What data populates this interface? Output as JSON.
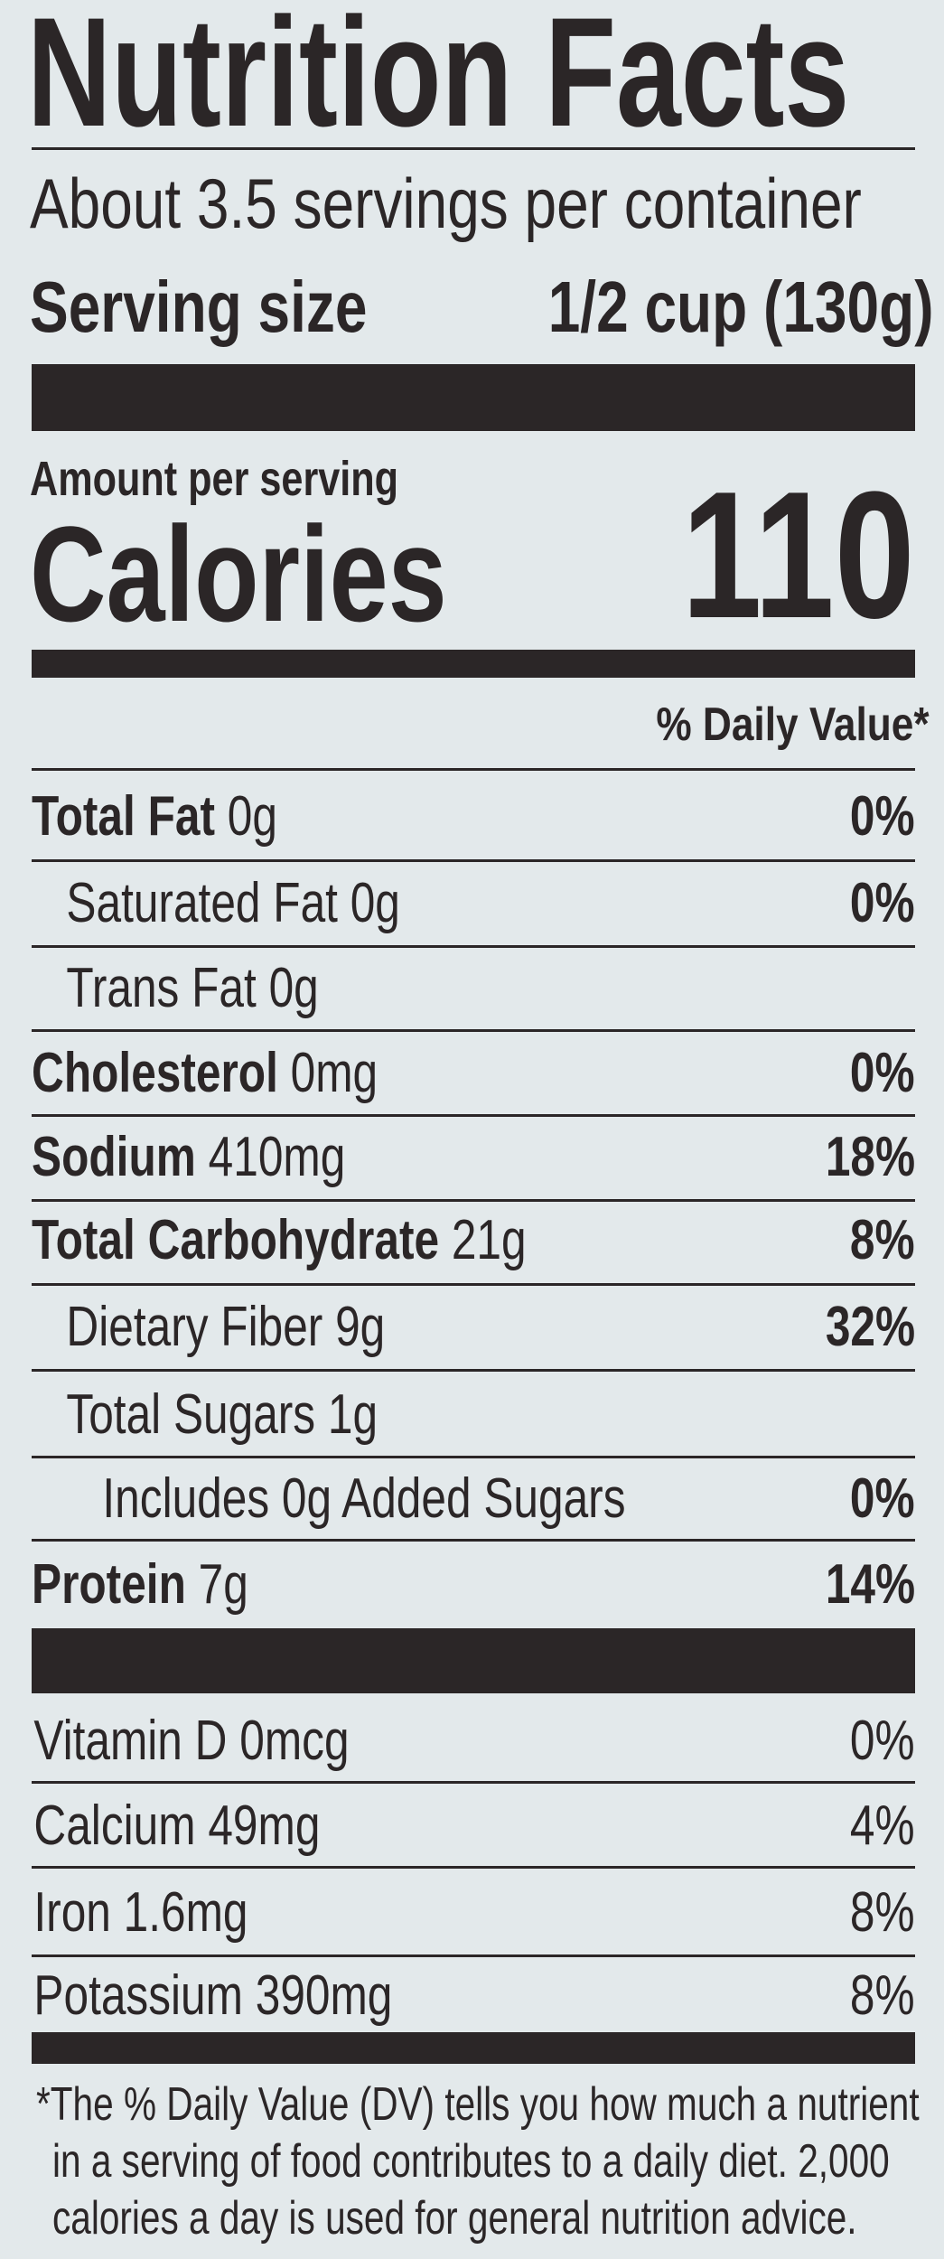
{
  "title": "Nutrition Facts",
  "servings_per_container": "About 3.5 servings per container",
  "serving_size": {
    "label": "Serving size",
    "value": "1/2 cup (130g)"
  },
  "amount_per_serving": "Amount per serving",
  "calories": {
    "label": "Calories",
    "value": "110"
  },
  "dv_header": "% Daily Value*",
  "nutrients": [
    {
      "name": "Total Fat",
      "amount": "0g",
      "dv": "0%"
    },
    {
      "name": "Saturated Fat",
      "amount": "0g",
      "dv": "0%"
    },
    {
      "name": "Trans Fat",
      "amount": "0g",
      "dv": ""
    },
    {
      "name": "Cholesterol",
      "amount": "0mg",
      "dv": "0%"
    },
    {
      "name": "Sodium",
      "amount": "410mg",
      "dv": "18%"
    },
    {
      "name": "Total Carbohydrate",
      "amount": "21g",
      "dv": "8%"
    },
    {
      "name": "Dietary Fiber",
      "amount": "9g",
      "dv": "32%"
    },
    {
      "name": "Total Sugars",
      "amount": "1g",
      "dv": ""
    },
    {
      "name": "Includes 0g Added Sugars",
      "amount": "",
      "dv": "0%"
    },
    {
      "name": "Protein",
      "amount": "7g",
      "dv": "14%"
    }
  ],
  "vitamins": [
    {
      "name": "Vitamin D 0mcg",
      "dv": "0%"
    },
    {
      "name": "Calcium 49mg",
      "dv": "4%"
    },
    {
      "name": "Iron 1.6mg",
      "dv": "8%"
    },
    {
      "name": "Potassium 390mg",
      "dv": "8%"
    }
  ],
  "footnote": [
    "*The % Daily Value (DV) tells you how much a nutrient",
    "in a serving of food contributes to a daily diet. 2,000",
    "calories a day is used for general nutrition advice."
  ]
}
